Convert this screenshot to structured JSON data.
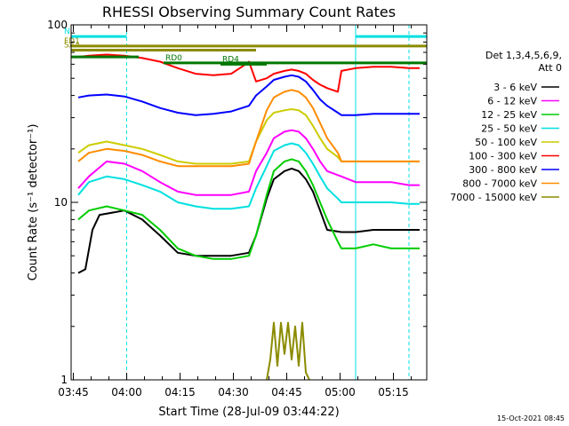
{
  "chart_data": {
    "type": "line",
    "title": "RHESSI Observing Summary Count Rates",
    "xlabel": "Start Time (28-Jul-09 03:44:22)",
    "ylabel": "Count Rate (s⁻¹ detector⁻¹)",
    "yscale": "log",
    "ylim": [
      1,
      100
    ],
    "xlim_minutes": [
      0,
      100
    ],
    "y_ticks": [
      {
        "value": 1,
        "label": "1"
      },
      {
        "value": 10,
        "label": "10"
      },
      {
        "value": 100,
        "label": "100"
      }
    ],
    "x_ticks": [
      {
        "minute": 0.63,
        "label": "03:45"
      },
      {
        "minute": 15.63,
        "label": "04:00"
      },
      {
        "minute": 30.63,
        "label": "04:15"
      },
      {
        "minute": 45.63,
        "label": "04:30"
      },
      {
        "minute": 60.63,
        "label": "04:45"
      },
      {
        "minute": 75.63,
        "label": "05:00"
      },
      {
        "minute": 90.63,
        "label": "05:15"
      }
    ],
    "legend": {
      "placement": "right",
      "header_lines": [
        "Det 1,3,4,5,6,9,",
        "Att 0"
      ]
    },
    "series": [
      {
        "name": "3 - 6 keV",
        "color": "#000000",
        "x": [
          2,
          4,
          6,
          8,
          15,
          20,
          25,
          30,
          35,
          40,
          45,
          50,
          52,
          55,
          57,
          60,
          62,
          64,
          66,
          68,
          70,
          72,
          76,
          80,
          85,
          90,
          95,
          98
        ],
        "y": [
          4.0,
          4.2,
          7.0,
          8.5,
          9.0,
          8.0,
          6.5,
          5.2,
          5.0,
          5.0,
          5.0,
          5.2,
          6.5,
          10.5,
          13.5,
          15.0,
          15.5,
          15.0,
          13.5,
          11.5,
          9.0,
          7.0,
          6.8,
          6.8,
          7.0,
          7.0,
          7.0,
          7.0
        ]
      },
      {
        "name": "6 - 12 keV",
        "color": "#ff00ff",
        "x": [
          2,
          5,
          10,
          15,
          20,
          25,
          30,
          35,
          40,
          45,
          50,
          52,
          55,
          57,
          60,
          62,
          64,
          66,
          68,
          70,
          72,
          76,
          80,
          85,
          90,
          95,
          98
        ],
        "y": [
          12.0,
          14.0,
          17.0,
          16.5,
          15.0,
          13.0,
          11.5,
          11.0,
          11.0,
          11.0,
          11.5,
          15.0,
          19.0,
          23.0,
          25.0,
          25.5,
          25.0,
          23.0,
          20.0,
          17.0,
          15.0,
          14.0,
          13.0,
          13.0,
          13.0,
          12.5,
          12.5
        ]
      },
      {
        "name": "12 - 25 keV",
        "color": "#00cc00",
        "x": [
          2,
          5,
          10,
          15,
          20,
          25,
          30,
          35,
          40,
          45,
          50,
          52,
          55,
          57,
          60,
          62,
          64,
          66,
          68,
          70,
          72,
          75,
          76,
          80,
          85,
          90,
          95,
          98
        ],
        "y": [
          8.0,
          9.0,
          9.5,
          9.0,
          8.5,
          7.0,
          5.5,
          5.0,
          4.8,
          4.8,
          5.0,
          6.5,
          11.0,
          15.0,
          17.0,
          17.5,
          17.0,
          15.0,
          12.5,
          10.0,
          8.0,
          6.0,
          5.5,
          5.5,
          5.8,
          5.5,
          5.5,
          5.5
        ]
      },
      {
        "name": "25 - 50 keV",
        "color": "#00e0e0",
        "x": [
          2,
          5,
          10,
          15,
          20,
          25,
          30,
          35,
          40,
          45,
          50,
          52,
          55,
          57,
          60,
          62,
          64,
          66,
          68,
          70,
          72,
          75,
          76,
          80,
          85,
          90,
          95,
          98
        ],
        "y": [
          11.0,
          13.0,
          14.0,
          13.5,
          12.5,
          11.5,
          10.0,
          9.5,
          9.2,
          9.2,
          9.5,
          12.0,
          16.0,
          19.5,
          21.0,
          21.5,
          21.0,
          19.0,
          16.5,
          14.0,
          12.0,
          10.5,
          10.0,
          10.0,
          10.0,
          10.0,
          9.8,
          9.8
        ]
      },
      {
        "name": "50 - 100 keV",
        "color": "#cccc00",
        "x": [
          2,
          5,
          10,
          15,
          20,
          25,
          30,
          35,
          40,
          45,
          50,
          52,
          55,
          57,
          60,
          62,
          64,
          66,
          68,
          70,
          72,
          75,
          76,
          80,
          85,
          90,
          95,
          98
        ],
        "y": [
          19.0,
          21.0,
          22.0,
          21.0,
          20.0,
          18.5,
          17.0,
          16.5,
          16.5,
          16.5,
          17.0,
          22.0,
          29.0,
          32.0,
          33.0,
          33.5,
          33.0,
          31.0,
          27.0,
          23.0,
          20.0,
          18.0,
          17.0,
          17.0,
          17.0,
          17.0,
          17.0,
          17.0
        ]
      },
      {
        "name": "100 - 300 keV",
        "color": "#ff0000",
        "x": [
          2,
          5,
          10,
          15,
          20,
          25,
          30,
          35,
          40,
          45,
          48,
          50,
          52,
          55,
          57,
          60,
          62,
          64,
          66,
          68,
          70,
          72,
          75,
          76,
          80,
          85,
          90,
          95,
          98
        ],
        "y": [
          66.0,
          67.0,
          68.0,
          67.0,
          65.0,
          62.0,
          57.0,
          53.0,
          52.0,
          53.0,
          58.0,
          62.0,
          48.0,
          50.0,
          53.0,
          55.0,
          56.0,
          55.0,
          53.0,
          49.0,
          46.0,
          44.0,
          42.0,
          55.0,
          57.0,
          58.0,
          58.0,
          57.0,
          57.0
        ]
      },
      {
        "name": "300 - 800 keV",
        "color": "#0000ff",
        "x": [
          2,
          5,
          10,
          15,
          20,
          25,
          30,
          35,
          40,
          45,
          50,
          52,
          55,
          57,
          60,
          62,
          64,
          66,
          68,
          70,
          72,
          75,
          76,
          80,
          85,
          90,
          95,
          98
        ],
        "y": [
          39.0,
          40.0,
          40.5,
          39.5,
          37.0,
          34.0,
          32.0,
          31.0,
          31.5,
          32.5,
          35.0,
          40.0,
          45.0,
          49.0,
          51.0,
          52.0,
          51.0,
          48.0,
          43.0,
          38.0,
          35.0,
          32.0,
          31.0,
          31.0,
          31.5,
          31.5,
          31.5,
          31.5
        ]
      },
      {
        "name": "800 - 7000 keV",
        "color": "#ff8c00",
        "x": [
          2,
          5,
          10,
          15,
          20,
          25,
          30,
          35,
          40,
          45,
          50,
          52,
          55,
          57,
          60,
          62,
          64,
          66,
          68,
          70,
          72,
          75,
          76,
          80,
          85,
          90,
          95,
          98
        ],
        "y": [
          17.0,
          19.0,
          20.0,
          19.5,
          18.5,
          17.0,
          16.0,
          16.0,
          16.0,
          16.0,
          16.5,
          22.0,
          33.0,
          39.0,
          42.0,
          43.0,
          42.0,
          39.0,
          34.0,
          28.0,
          23.0,
          19.0,
          17.0,
          17.0,
          17.0,
          17.0,
          17.0,
          17.0
        ]
      },
      {
        "name": "7000 - 15000 keV",
        "color": "#8b8b00",
        "x": [
          55,
          56,
          57,
          58,
          59,
          60,
          61,
          62,
          63,
          64,
          65,
          66,
          67
        ],
        "y": [
          1.0,
          1.3,
          2.1,
          1.2,
          2.1,
          1.4,
          2.1,
          1.3,
          2.0,
          1.2,
          2.1,
          1.1,
          1.0
        ]
      }
    ],
    "state_bars": [
      {
        "label": "FD1",
        "color": "#8b8b00",
        "y": 76.0,
        "x_start": 0,
        "x_end": 100
      },
      {
        "label": "SAA",
        "color": "#8b8b00",
        "y": 72.0,
        "x_start": 0,
        "x_end": 52
      },
      {
        "label": "N",
        "color": "#00e0e0",
        "y": 86.0,
        "x_start": 0,
        "x_end": 15.6
      },
      {
        "label": "",
        "color": "#00e0e0",
        "y": 86.0,
        "x_start": 80,
        "x_end": 100
      },
      {
        "label": "",
        "color": "#007700",
        "y": 66.0,
        "x_start": 0,
        "x_end": 19
      },
      {
        "label": "RD0",
        "color": "#007700",
        "y": 61.0,
        "x_start": 26,
        "x_end": 100
      },
      {
        "label": "RD4",
        "color": "#007700",
        "y": 60.0,
        "x_start": 42,
        "x_end": 55
      }
    ],
    "vlines": [
      {
        "minute": 0,
        "style": "solid",
        "color": "#00e0e0"
      },
      {
        "minute": 15.6,
        "style": "dashed",
        "color": "#00e0e0"
      },
      {
        "minute": 80,
        "style": "solid",
        "color": "#00e0e0"
      },
      {
        "minute": 95,
        "style": "dashed",
        "color": "#00e0e0"
      }
    ]
  },
  "footer": {
    "timestamp": "15-Oct-2021 08:45"
  }
}
